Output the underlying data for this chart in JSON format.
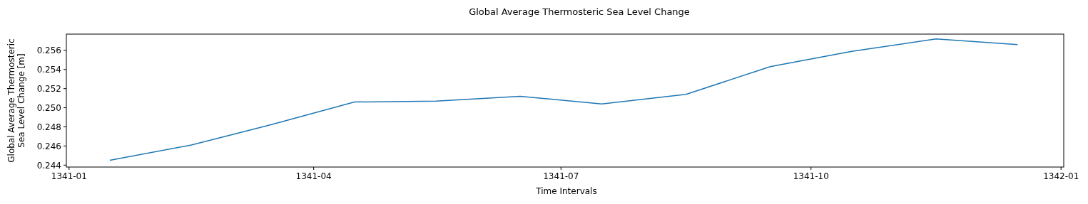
{
  "chart_data": {
    "type": "line",
    "title": "Global Average Thermosteric Sea Level Change",
    "xlabel": "Time Intervals",
    "ylabel": "Global Average Thermosteric\nSea Level Change [m]",
    "x": [
      "1341-01-16",
      "1341-02-15",
      "1341-03-16",
      "1341-04-16",
      "1341-05-16",
      "1341-06-16",
      "1341-07-16",
      "1341-08-16",
      "1341-09-16",
      "1341-10-16",
      "1341-11-16",
      "1341-12-16"
    ],
    "series": [
      {
        "color": "#1f77b4",
        "values": [
          0.2445,
          0.2461,
          0.2482,
          0.2506,
          0.2507,
          0.2512,
          0.2504,
          0.2514,
          0.2543,
          0.2559,
          0.2572,
          0.2566
        ]
      }
    ],
    "xlim": [
      "1340-12-31",
      "1342-01-02"
    ],
    "xticks": [
      {
        "value": "1341-01-01",
        "label": "1341-01"
      },
      {
        "value": "1341-04-01",
        "label": "1341-04"
      },
      {
        "value": "1341-07-01",
        "label": "1341-07"
      },
      {
        "value": "1341-10-01",
        "label": "1341-10"
      },
      {
        "value": "1342-01-01",
        "label": "1342-01"
      }
    ],
    "ylim": [
      0.2438,
      0.2577
    ],
    "yticks": [
      {
        "value": 0.244,
        "label": "0.244"
      },
      {
        "value": 0.246,
        "label": "0.246"
      },
      {
        "value": 0.248,
        "label": "0.248"
      },
      {
        "value": 0.25,
        "label": "0.250"
      },
      {
        "value": 0.252,
        "label": "0.252"
      },
      {
        "value": 0.254,
        "label": "0.254"
      },
      {
        "value": 0.256,
        "label": "0.256"
      }
    ],
    "grid": false
  }
}
